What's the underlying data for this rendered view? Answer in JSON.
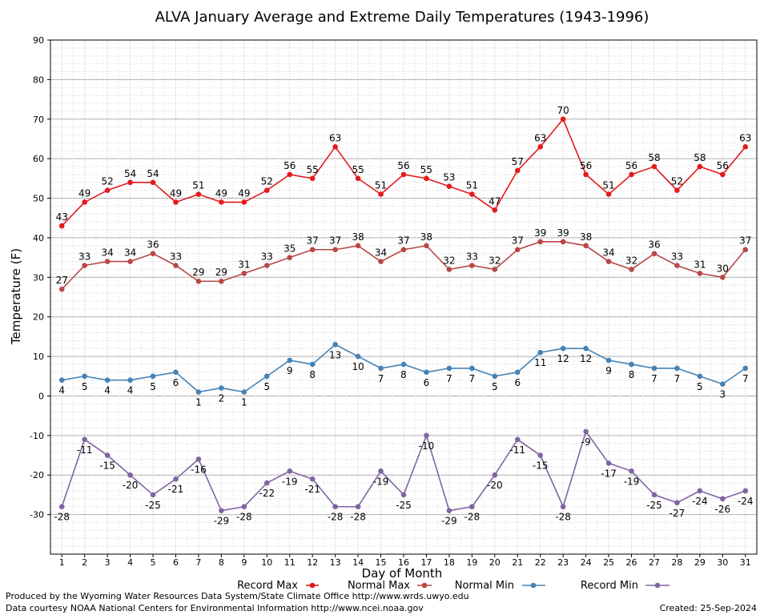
{
  "chart_data": {
    "type": "line",
    "title": "ALVA January Average and Extreme Daily Temperatures (1943-1996)",
    "xlabel": "Day of Month",
    "ylabel": "Temperature (F)",
    "xlim": [
      0.5,
      31.5
    ],
    "ylim": [
      -40,
      90
    ],
    "yticks": [
      -30,
      -20,
      -10,
      0,
      10,
      20,
      30,
      40,
      50,
      60,
      70,
      80,
      90
    ],
    "x": [
      1,
      2,
      3,
      4,
      5,
      6,
      7,
      8,
      9,
      10,
      11,
      12,
      13,
      14,
      15,
      16,
      17,
      18,
      19,
      20,
      21,
      22,
      23,
      24,
      25,
      26,
      27,
      28,
      29,
      30,
      31
    ],
    "grid": true,
    "legend_position": "bottom",
    "series": [
      {
        "name": "Record Max",
        "color": "#e41a1c",
        "values": [
          43,
          49,
          52,
          54,
          54,
          49,
          51,
          49,
          49,
          52,
          56,
          55,
          63,
          55,
          51,
          56,
          55,
          53,
          51,
          47,
          57,
          63,
          70,
          56,
          51,
          56,
          58,
          52,
          58,
          56,
          63
        ]
      },
      {
        "name": "Normal Max",
        "color": "#b84848",
        "values": [
          27,
          33,
          34,
          34,
          36,
          33,
          29,
          29,
          31,
          33,
          35,
          37,
          37,
          38,
          34,
          37,
          38,
          32,
          33,
          32,
          37,
          39,
          39,
          38,
          34,
          32,
          36,
          33,
          31,
          30,
          37
        ]
      },
      {
        "name": "Normal Min",
        "color": "#4682b4",
        "values": [
          4,
          5,
          4,
          4,
          5,
          6,
          1,
          2,
          1,
          5,
          9,
          8,
          13,
          10,
          7,
          8,
          6,
          7,
          7,
          5,
          6,
          11,
          12,
          12,
          9,
          8,
          7,
          7,
          5,
          3,
          7
        ]
      },
      {
        "name": "Record Min",
        "color": "#8064a2",
        "values": [
          -28,
          -11,
          -15,
          -20,
          -25,
          -21,
          -16,
          -29,
          -28,
          -22,
          -19,
          -21,
          -28,
          -28,
          -19,
          -25,
          -10,
          -29,
          -28,
          -20,
          -11,
          -15,
          -28,
          -9,
          -17,
          -19,
          -25,
          -27,
          -24,
          -26,
          -24
        ]
      }
    ]
  },
  "footer": {
    "produced_by": "Produced by the Wyoming Water Resources Data System/State Climate Office http://www.wrds.uwyo.edu",
    "courtesy": "Data courtesy NOAA National Centers for Environmental Information http://www.ncei.noaa.gov",
    "created": "Created:  25-Sep-2024"
  }
}
